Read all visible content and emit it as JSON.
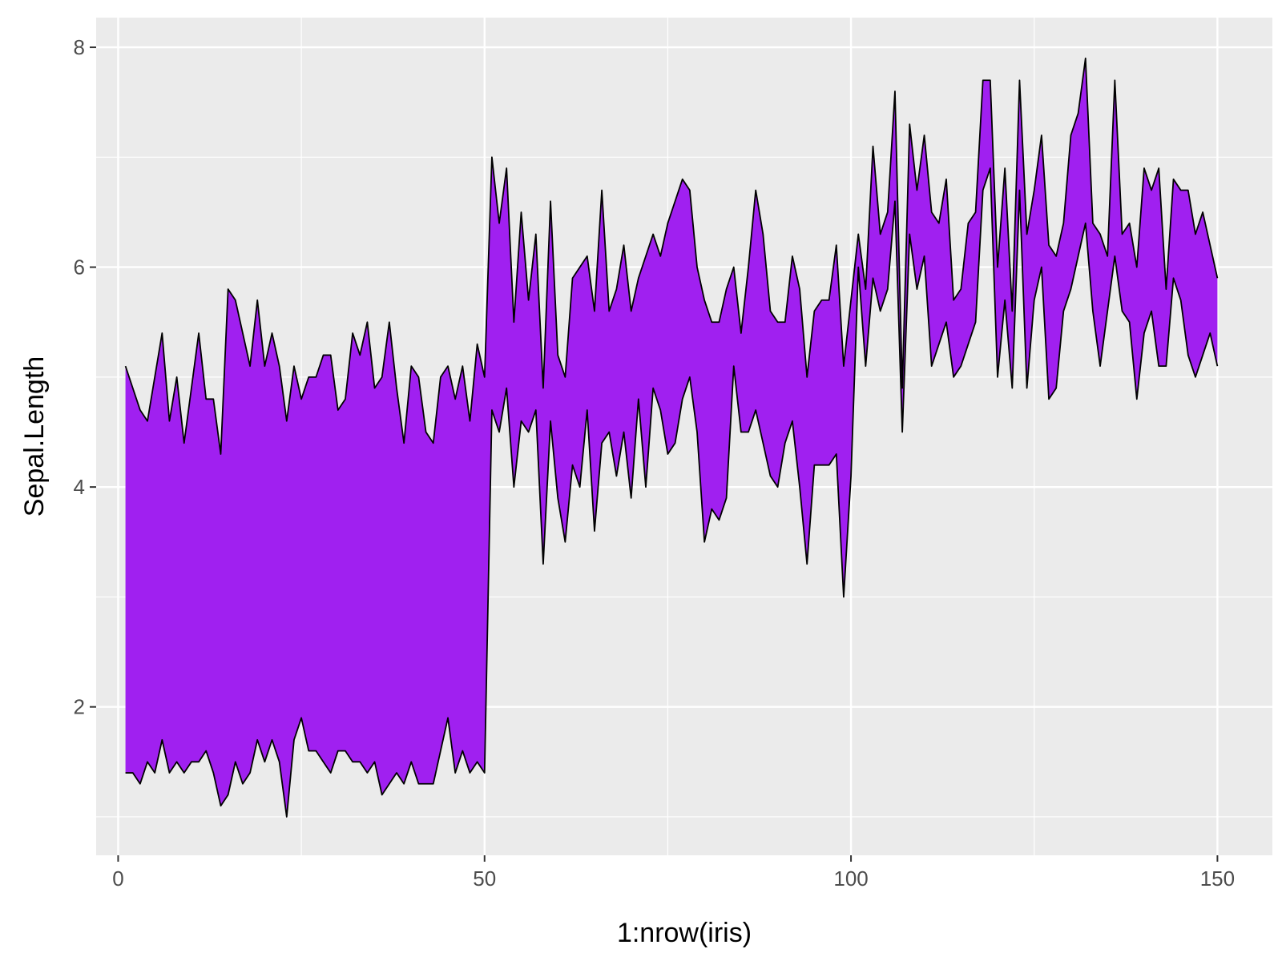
{
  "chart_data": {
    "type": "area",
    "title": "",
    "xlabel": "1:nrow(iris)",
    "ylabel": "Sepal.Length",
    "xlim": [
      -3,
      157.5
    ],
    "ylim": [
      0.65,
      8.27
    ],
    "xticks": [
      0,
      50,
      100,
      150
    ],
    "yticks": [
      2,
      4,
      6,
      8
    ],
    "x_tick_labels": [
      "0",
      "50",
      "100",
      "150"
    ],
    "y_tick_labels": [
      "2",
      "4",
      "6",
      "8"
    ],
    "grid": true,
    "legend": "none",
    "series": [
      {
        "role": "upper",
        "x_start": 1,
        "values": [
          5.1,
          4.9,
          4.7,
          4.6,
          5.0,
          5.4,
          4.6,
          5.0,
          4.4,
          4.9,
          5.4,
          4.8,
          4.8,
          4.3,
          5.8,
          5.7,
          5.4,
          5.1,
          5.7,
          5.1,
          5.4,
          5.1,
          4.6,
          5.1,
          4.8,
          5.0,
          5.0,
          5.2,
          5.2,
          4.7,
          4.8,
          5.4,
          5.2,
          5.5,
          4.9,
          5.0,
          5.5,
          4.9,
          4.4,
          5.1,
          5.0,
          4.5,
          4.4,
          5.0,
          5.1,
          4.8,
          5.1,
          4.6,
          5.3,
          5.0,
          7.0,
          6.4,
          6.9,
          5.5,
          6.5,
          5.7,
          6.3,
          4.9,
          6.6,
          5.2,
          5.0,
          5.9,
          6.0,
          6.1,
          5.6,
          6.7,
          5.6,
          5.8,
          6.2,
          5.6,
          5.9,
          6.1,
          6.3,
          6.1,
          6.4,
          6.6,
          6.8,
          6.7,
          6.0,
          5.7,
          5.5,
          5.5,
          5.8,
          6.0,
          5.4,
          6.0,
          6.7,
          6.3,
          5.6,
          5.5,
          5.5,
          6.1,
          5.8,
          5.0,
          5.6,
          5.7,
          5.7,
          6.2,
          5.1,
          5.7,
          6.3,
          5.8,
          7.1,
          6.3,
          6.5,
          7.6,
          4.9,
          7.3,
          6.7,
          7.2,
          6.5,
          6.4,
          6.8,
          5.7,
          5.8,
          6.4,
          6.5,
          7.7,
          7.7,
          6.0,
          6.9,
          5.6,
          7.7,
          6.3,
          6.7,
          7.2,
          6.2,
          6.1,
          6.4,
          7.2,
          7.4,
          7.9,
          6.4,
          6.3,
          6.1,
          7.7,
          6.3,
          6.4,
          6.0,
          6.9,
          6.7,
          6.9,
          5.8,
          6.8,
          6.7,
          6.7,
          6.3,
          6.5,
          6.2,
          5.9
        ]
      },
      {
        "role": "lower",
        "x_start": 1,
        "values": [
          1.4,
          1.4,
          1.3,
          1.5,
          1.4,
          1.7,
          1.4,
          1.5,
          1.4,
          1.5,
          1.5,
          1.6,
          1.4,
          1.1,
          1.2,
          1.5,
          1.3,
          1.4,
          1.7,
          1.5,
          1.7,
          1.5,
          1.0,
          1.7,
          1.9,
          1.6,
          1.6,
          1.5,
          1.4,
          1.6,
          1.6,
          1.5,
          1.5,
          1.4,
          1.5,
          1.2,
          1.3,
          1.4,
          1.3,
          1.5,
          1.3,
          1.3,
          1.3,
          1.6,
          1.9,
          1.4,
          1.6,
          1.4,
          1.5,
          1.4,
          4.7,
          4.5,
          4.9,
          4.0,
          4.6,
          4.5,
          4.7,
          3.3,
          4.6,
          3.9,
          3.5,
          4.2,
          4.0,
          4.7,
          3.6,
          4.4,
          4.5,
          4.1,
          4.5,
          3.9,
          4.8,
          4.0,
          4.9,
          4.7,
          4.3,
          4.4,
          4.8,
          5.0,
          4.5,
          3.5,
          3.8,
          3.7,
          3.9,
          5.1,
          4.5,
          4.5,
          4.7,
          4.4,
          4.1,
          4.0,
          4.4,
          4.6,
          4.0,
          3.3,
          4.2,
          4.2,
          4.2,
          4.3,
          3.0,
          4.1,
          6.0,
          5.1,
          5.9,
          5.6,
          5.8,
          6.6,
          4.5,
          6.3,
          5.8,
          6.1,
          5.1,
          5.3,
          5.5,
          5.0,
          5.1,
          5.3,
          5.5,
          6.7,
          6.9,
          5.0,
          5.7,
          4.9,
          6.7,
          4.9,
          5.7,
          6.0,
          4.8,
          4.9,
          5.6,
          5.8,
          6.1,
          6.4,
          5.6,
          5.1,
          5.6,
          6.1,
          5.6,
          5.5,
          4.8,
          5.4,
          5.6,
          5.1,
          5.1,
          5.9,
          5.7,
          5.2,
          5.0,
          5.2,
          5.4,
          5.1
        ]
      }
    ],
    "fill_color": "#a020f0",
    "line_color": "#000000",
    "panel_bg": "#ebebeb",
    "grid_color": "#ffffff"
  }
}
